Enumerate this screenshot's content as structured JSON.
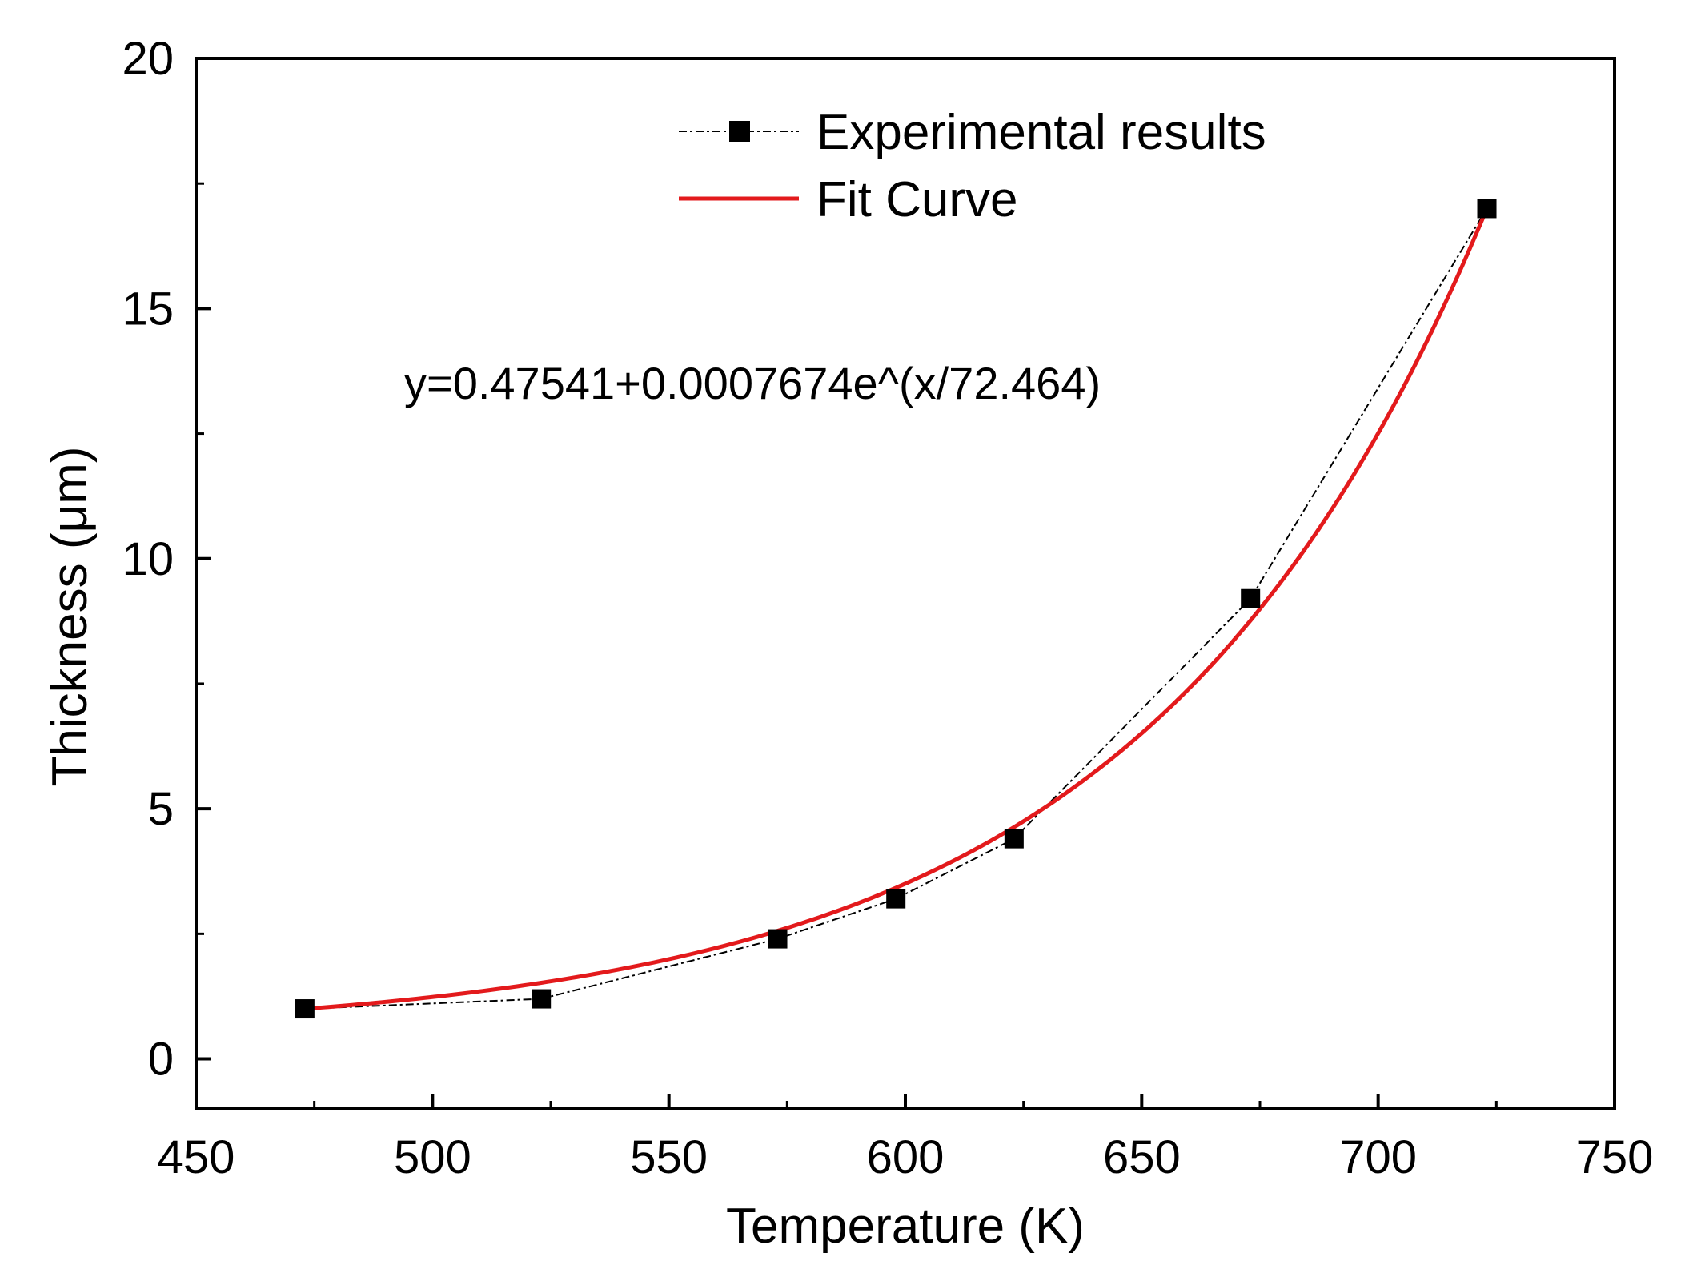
{
  "chart_data": {
    "type": "line",
    "title": "",
    "xlabel": "Temperature (K)",
    "ylabel": "Thickness (μm)",
    "xlim": [
      450,
      750
    ],
    "ylim": [
      -1,
      20
    ],
    "xticks": [
      450,
      500,
      550,
      600,
      650,
      700,
      750
    ],
    "yticks": [
      0,
      5,
      10,
      15,
      20
    ],
    "xtick_labels": [
      "450",
      "500",
      "550",
      "600",
      "650",
      "700",
      "750"
    ],
    "ytick_labels": [
      "0",
      "5",
      "10",
      "15",
      "20"
    ],
    "grid": false,
    "legend_position": "top-center",
    "series": [
      {
        "name": "Experimental results",
        "style": "dash-dot with square markers",
        "color": "#000000",
        "x": [
          473,
          523,
          573,
          598,
          623,
          673,
          723
        ],
        "y": [
          1.0,
          1.2,
          2.4,
          3.2,
          4.4,
          9.2,
          17.0
        ]
      },
      {
        "name": "Fit Curve",
        "style": "solid",
        "color": "#e31a1c",
        "equation": {
          "a": 0.47541,
          "b": 0.0007674,
          "c": 72.464
        },
        "x_range": [
          473,
          723
        ]
      }
    ],
    "annotation": "y=0.47541+0.0007674e^(x/72.464)"
  }
}
